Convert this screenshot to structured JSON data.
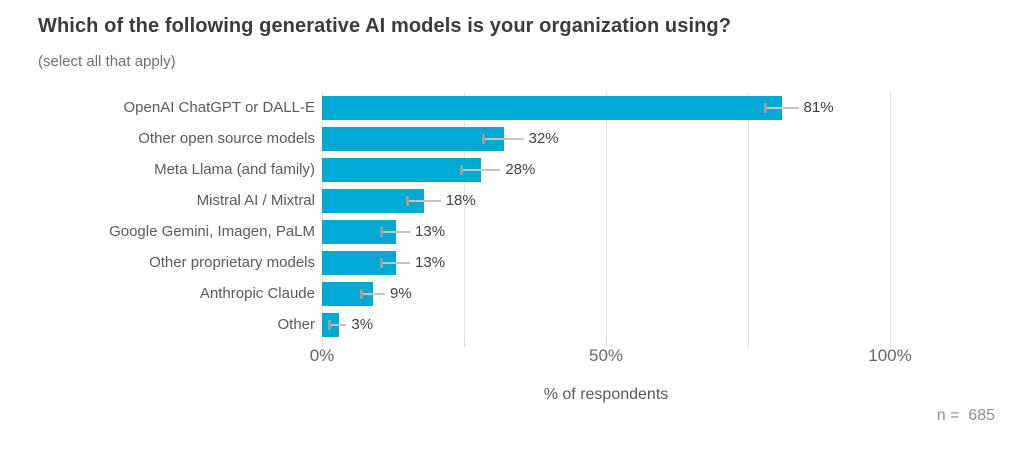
{
  "chart_data": {
    "type": "bar",
    "orientation": "horizontal",
    "title": "Which of the following generative AI models is your organization using?",
    "subtitle": "(select all that apply)",
    "xlabel": "% of respondents",
    "note": "n =  685",
    "sample_size": 685,
    "xlim": [
      0,
      100
    ],
    "grid": true,
    "gridline_values": [
      0,
      25,
      50,
      75,
      100
    ],
    "xticks": [
      {
        "value": 0,
        "label": "0%"
      },
      {
        "value": 50,
        "label": "50%"
      },
      {
        "value": 100,
        "label": "100%"
      }
    ],
    "legend": false,
    "bar_color": "#00a8d4",
    "error_bar_color": "#c3c3c3",
    "categories": [
      "OpenAI ChatGPT or DALL-E",
      "Other open source models",
      "Meta Llama (and family)",
      "Mistral AI / Mixtral",
      "Google Gemini, Imagen, PaLM",
      "Other proprietary models",
      "Anthropic Claude",
      "Other"
    ],
    "values": [
      81,
      32,
      28,
      18,
      13,
      13,
      9,
      3
    ],
    "value_labels": [
      "81%",
      "32%",
      "28%",
      "18%",
      "13%",
      "13%",
      "9%",
      "3%"
    ],
    "error_low": [
      78.1,
      28.5,
      24.6,
      15.1,
      10.5,
      10.5,
      6.9,
      1.3
    ],
    "error_high": [
      83.9,
      35.5,
      31.4,
      20.9,
      15.5,
      15.5,
      11.1,
      4.3
    ]
  }
}
